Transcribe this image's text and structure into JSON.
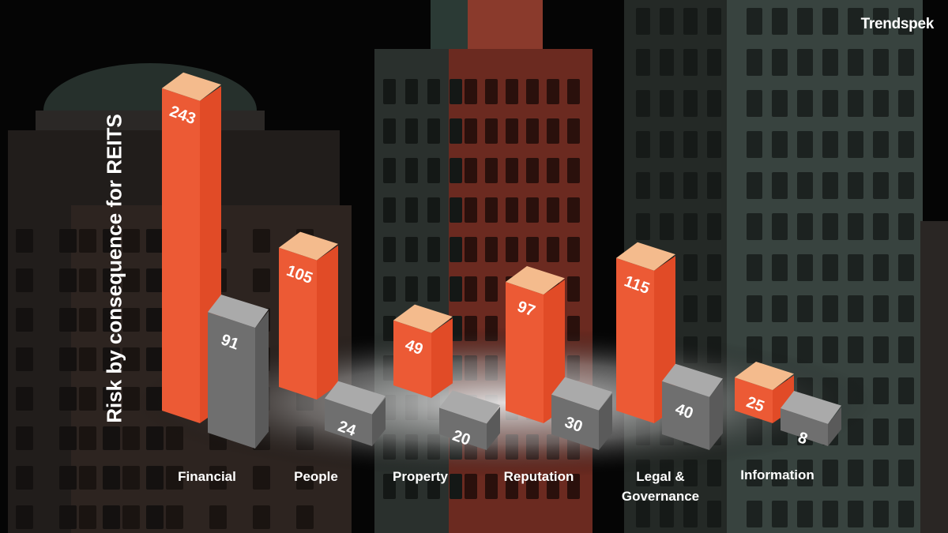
{
  "brand": {
    "name": "Trendspek"
  },
  "chart_data": {
    "type": "bar",
    "title": "",
    "ylabel": "Risk by consequence for REITS",
    "xlabel": "",
    "categories": [
      "Financial",
      "People",
      "Property",
      "Reputation",
      "Legal & Governance",
      "Information"
    ],
    "series": [
      {
        "values": [
          243,
          105,
          49,
          97,
          115,
          25
        ]
      },
      {
        "values": [
          91,
          24,
          20,
          30,
          40,
          8
        ]
      }
    ],
    "colors": {
      "primary": "#ec5a35",
      "primary_top": "#f4bb8d",
      "secondary": "#6f6f6f",
      "secondary_top": "#aaaaaa"
    },
    "style": "3d-isometric"
  }
}
